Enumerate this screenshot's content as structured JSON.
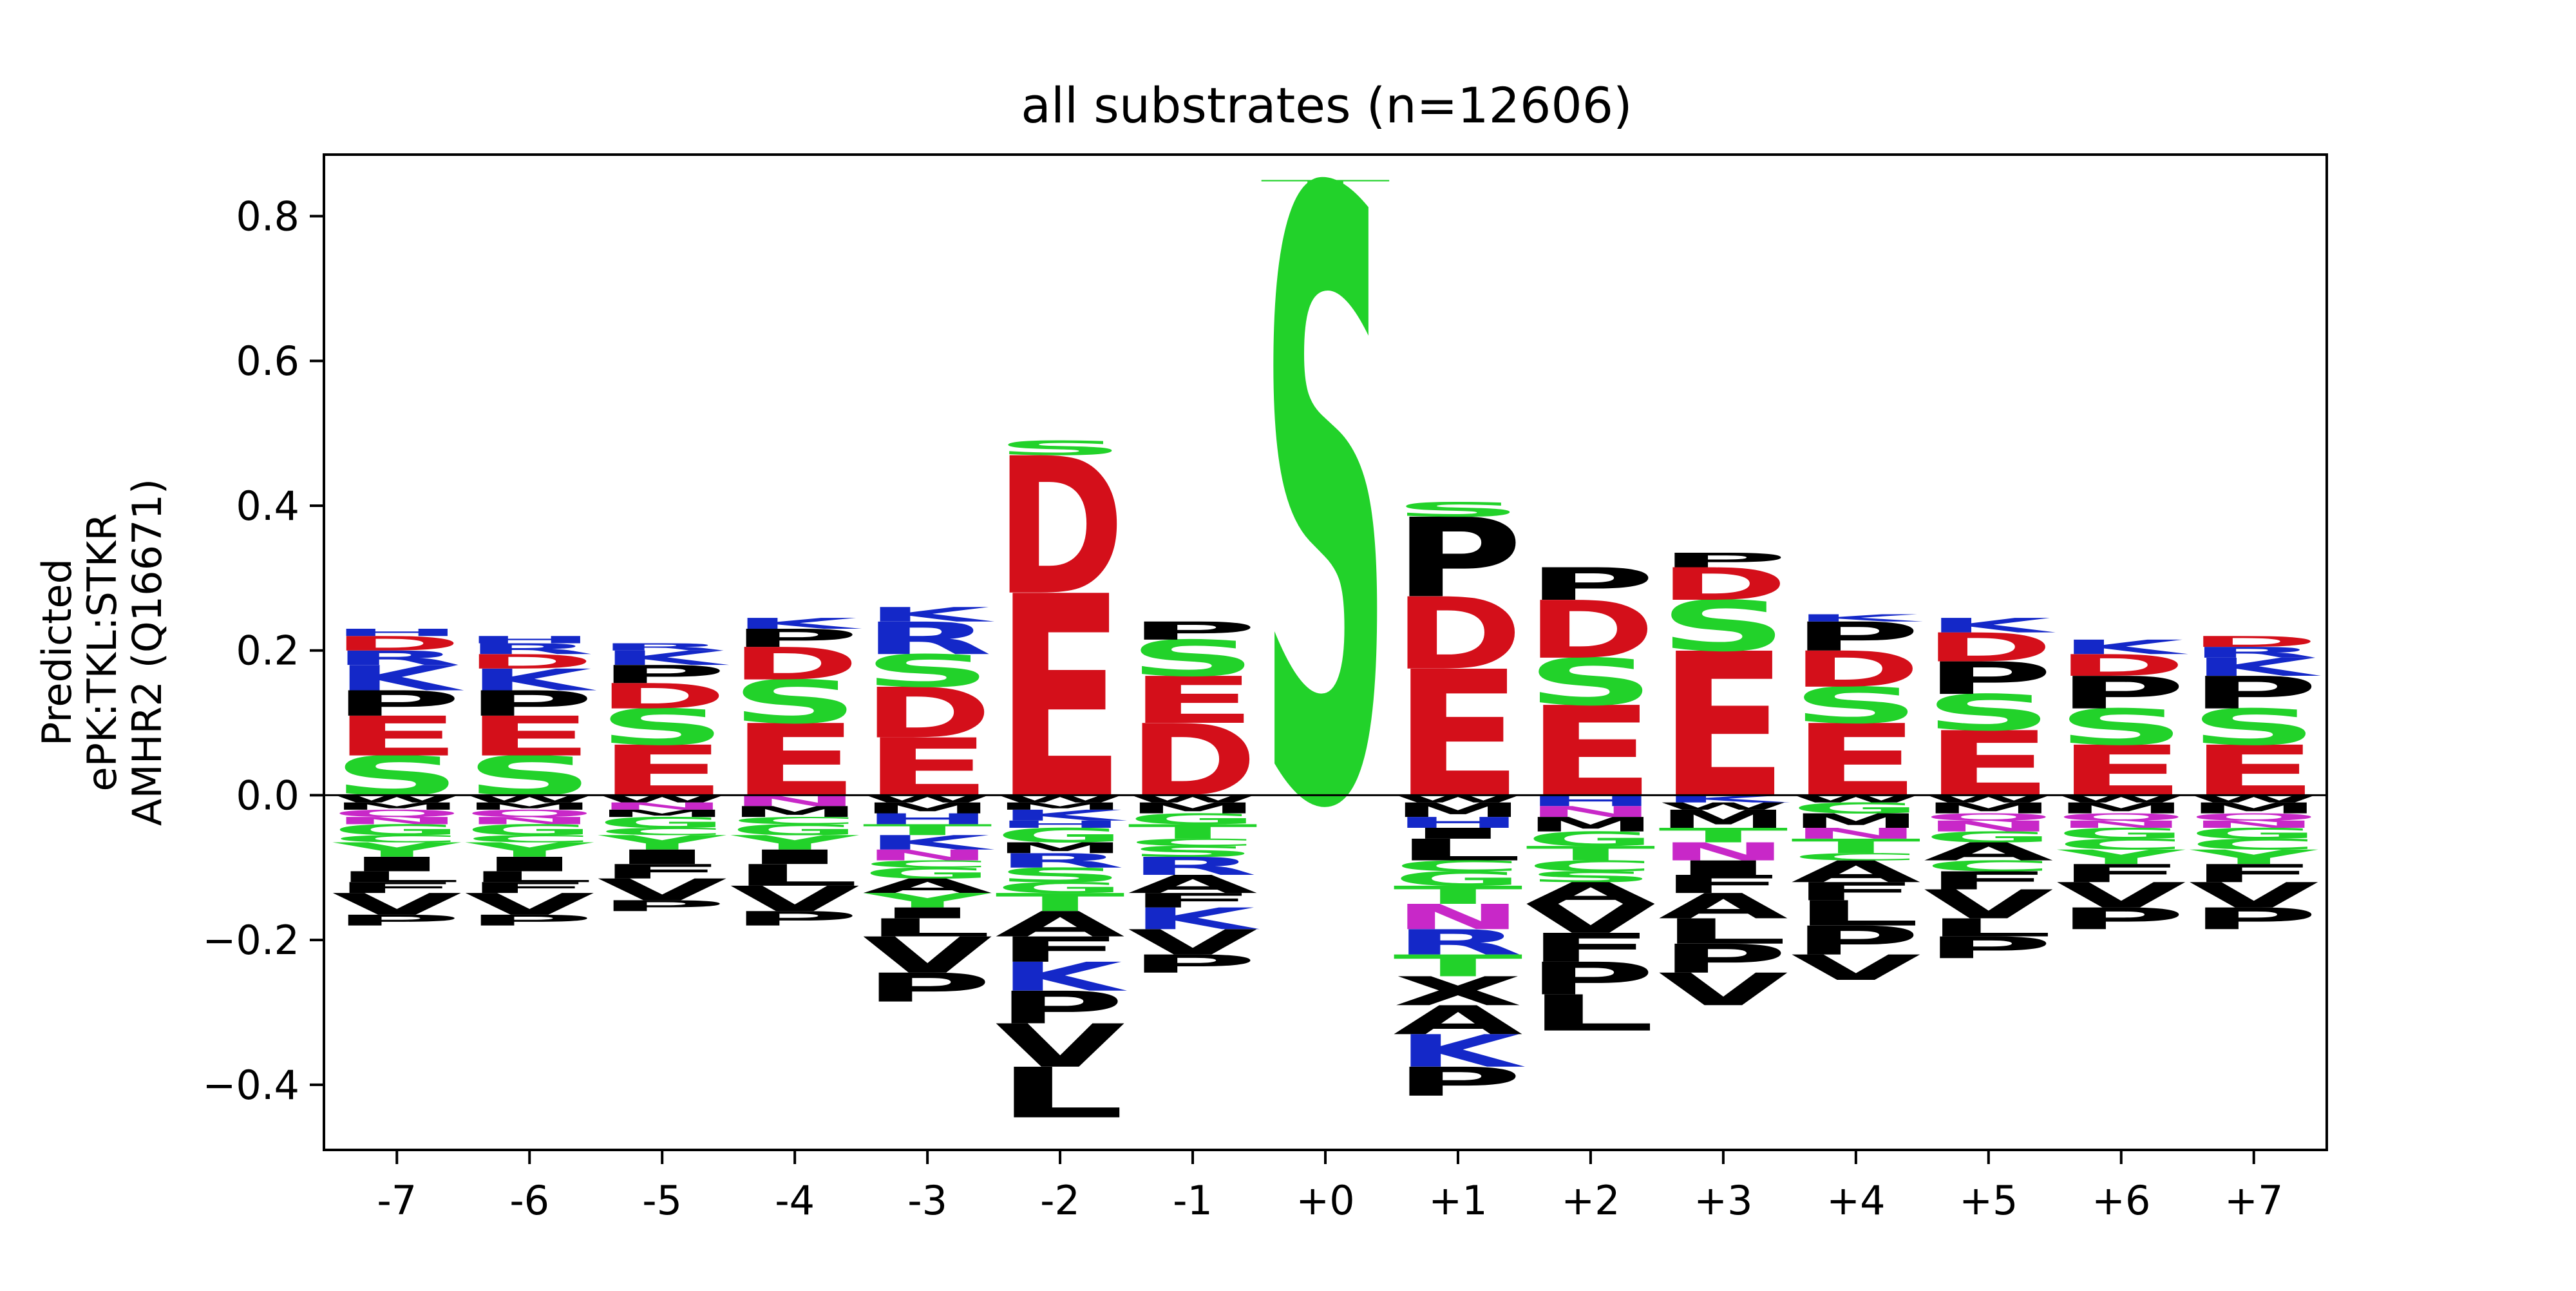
{
  "chart_data": {
    "type": "sequence-logo",
    "title": "all substrates (n=12606)",
    "ylabel_lines": [
      "Predicted",
      "ePK:TKL:STKR",
      "AMHR2 (Q16671)"
    ],
    "ylim": [
      -0.49,
      0.885
    ],
    "yticks": [
      -0.4,
      -0.2,
      0.0,
      0.2,
      0.4,
      0.6,
      0.8
    ],
    "ytick_labels": [
      "−0.4",
      "−0.2",
      "0.0",
      "0.2",
      "0.4",
      "0.6",
      "0.8"
    ],
    "positions": [
      "-7",
      "-6",
      "-5",
      "-4",
      "-3",
      "-2",
      "-1",
      "+0",
      "+1",
      "+2",
      "+3",
      "+4",
      "+5",
      "+6",
      "+7"
    ],
    "colors": {
      "acidic": "#d40f1a",
      "basic": "#1428c8",
      "polar": "#22d22a",
      "amide": "#c828c8",
      "hydrophobic": "#000000",
      "axis": "#000000",
      "background": "#ffffff"
    },
    "residue_color_groups": {
      "acidic": [
        "D",
        "E"
      ],
      "basic": [
        "K",
        "R",
        "H"
      ],
      "polar": [
        "S",
        "T",
        "G",
        "Y",
        "C"
      ],
      "amide": [
        "N",
        "Q"
      ],
      "hydrophobic": [
        "A",
        "V",
        "L",
        "I",
        "P",
        "F",
        "M",
        "W"
      ]
    },
    "columns": [
      {
        "pos": "-7",
        "pos_stack": [
          [
            "S",
            0.055
          ],
          [
            "E",
            0.055
          ],
          [
            "P",
            0.035
          ],
          [
            "K",
            0.035
          ],
          [
            "R",
            0.02
          ],
          [
            "D",
            0.02
          ],
          [
            "H",
            0.01
          ]
        ],
        "neg_stack": [
          [
            "W",
            0.01
          ],
          [
            "M",
            0.01
          ],
          [
            "Q",
            0.01
          ],
          [
            "N",
            0.01
          ],
          [
            "G",
            0.015
          ],
          [
            "C",
            0.01
          ],
          [
            "Y",
            0.02
          ],
          [
            "I",
            0.02
          ],
          [
            "L",
            0.015
          ],
          [
            "F",
            0.015
          ],
          [
            "V",
            0.03
          ],
          [
            "P",
            0.015
          ]
        ]
      },
      {
        "pos": "-6",
        "pos_stack": [
          [
            "S",
            0.055
          ],
          [
            "E",
            0.055
          ],
          [
            "P",
            0.035
          ],
          [
            "K",
            0.03
          ],
          [
            "D",
            0.02
          ],
          [
            "R",
            0.015
          ],
          [
            "H",
            0.01
          ]
        ],
        "neg_stack": [
          [
            "W",
            0.01
          ],
          [
            "M",
            0.01
          ],
          [
            "Q",
            0.01
          ],
          [
            "N",
            0.01
          ],
          [
            "G",
            0.015
          ],
          [
            "C",
            0.01
          ],
          [
            "Y",
            0.02
          ],
          [
            "I",
            0.02
          ],
          [
            "L",
            0.015
          ],
          [
            "F",
            0.015
          ],
          [
            "V",
            0.03
          ],
          [
            "P",
            0.015
          ]
        ]
      },
      {
        "pos": "-5",
        "pos_stack": [
          [
            "E",
            0.07
          ],
          [
            "S",
            0.05
          ],
          [
            "D",
            0.035
          ],
          [
            "P",
            0.025
          ],
          [
            "K",
            0.02
          ],
          [
            "R",
            0.01
          ]
        ],
        "neg_stack": [
          [
            "W",
            0.01
          ],
          [
            "N",
            0.01
          ],
          [
            "M",
            0.01
          ],
          [
            "G",
            0.015
          ],
          [
            "C",
            0.01
          ],
          [
            "Y",
            0.02
          ],
          [
            "I",
            0.02
          ],
          [
            "F",
            0.02
          ],
          [
            "V",
            0.03
          ],
          [
            "P",
            0.015
          ]
        ]
      },
      {
        "pos": "-4",
        "pos_stack": [
          [
            "E",
            0.1
          ],
          [
            "S",
            0.06
          ],
          [
            "D",
            0.045
          ],
          [
            "P",
            0.025
          ],
          [
            "K",
            0.015
          ]
        ],
        "neg_stack": [
          [
            "N",
            0.015
          ],
          [
            "M",
            0.015
          ],
          [
            "C",
            0.01
          ],
          [
            "G",
            0.015
          ],
          [
            "Y",
            0.02
          ],
          [
            "I",
            0.02
          ],
          [
            "L",
            0.03
          ],
          [
            "V",
            0.035
          ],
          [
            "P",
            0.02
          ]
        ]
      },
      {
        "pos": "-3",
        "pos_stack": [
          [
            "E",
            0.08
          ],
          [
            "D",
            0.07
          ],
          [
            "S",
            0.045
          ],
          [
            "R",
            0.045
          ],
          [
            "K",
            0.02
          ]
        ],
        "neg_stack": [
          [
            "W",
            0.01
          ],
          [
            "M",
            0.015
          ],
          [
            "H",
            0.015
          ],
          [
            "T",
            0.015
          ],
          [
            "K",
            0.02
          ],
          [
            "N",
            0.015
          ],
          [
            "C",
            0.01
          ],
          [
            "G",
            0.015
          ],
          [
            "A",
            0.02
          ],
          [
            "Y",
            0.02
          ],
          [
            "I",
            0.015
          ],
          [
            "L",
            0.025
          ],
          [
            "V",
            0.05
          ],
          [
            "P",
            0.04
          ]
        ]
      },
      {
        "pos": "-2",
        "pos_stack": [
          [
            "E",
            0.28
          ],
          [
            "D",
            0.19
          ],
          [
            "S",
            0.02
          ]
        ],
        "neg_stack": [
          [
            "W",
            0.01
          ],
          [
            "M",
            0.01
          ],
          [
            "K",
            0.015
          ],
          [
            "H",
            0.01
          ],
          [
            "G",
            0.02
          ],
          [
            "M",
            0.015
          ],
          [
            "R",
            0.02
          ],
          [
            "S",
            0.02
          ],
          [
            "G",
            0.015
          ],
          [
            "T",
            0.025
          ],
          [
            "A",
            0.035
          ],
          [
            "F",
            0.035
          ],
          [
            "K",
            0.04
          ],
          [
            "P",
            0.045
          ],
          [
            "V",
            0.06
          ],
          [
            "L",
            0.07
          ]
        ]
      },
      {
        "pos": "-1",
        "pos_stack": [
          [
            "D",
            0.1
          ],
          [
            "E",
            0.065
          ],
          [
            "S",
            0.05
          ],
          [
            "P",
            0.025
          ]
        ],
        "neg_stack": [
          [
            "W",
            0.01
          ],
          [
            "M",
            0.015
          ],
          [
            "G",
            0.015
          ],
          [
            "T",
            0.02
          ],
          [
            "C",
            0.01
          ],
          [
            "S",
            0.015
          ],
          [
            "R",
            0.025
          ],
          [
            "A",
            0.025
          ],
          [
            "F",
            0.02
          ],
          [
            "K",
            0.03
          ],
          [
            "V",
            0.035
          ],
          [
            "P",
            0.025
          ]
        ]
      },
      {
        "pos": "+0",
        "pos_stack": [
          [
            "S",
            0.84
          ],
          [
            "T",
            0.01
          ]
        ],
        "neg_stack": []
      },
      {
        "pos": "+1",
        "pos_stack": [
          [
            "E",
            0.175
          ],
          [
            "D",
            0.1
          ],
          [
            "P",
            0.11
          ],
          [
            "S",
            0.02
          ]
        ],
        "neg_stack": [
          [
            "W",
            0.01
          ],
          [
            "M",
            0.02
          ],
          [
            "H",
            0.015
          ],
          [
            "I",
            0.015
          ],
          [
            "L",
            0.03
          ],
          [
            "C",
            0.015
          ],
          [
            "G",
            0.02
          ],
          [
            "T",
            0.025
          ],
          [
            "N",
            0.035
          ],
          [
            "R",
            0.035
          ],
          [
            "T",
            0.03
          ],
          [
            "X",
            0.04
          ],
          [
            "A",
            0.04
          ],
          [
            "K",
            0.045
          ],
          [
            "P",
            0.04
          ]
        ]
      },
      {
        "pos": "+2",
        "pos_stack": [
          [
            "E",
            0.125
          ],
          [
            "S",
            0.065
          ],
          [
            "D",
            0.08
          ],
          [
            "P",
            0.045
          ]
        ],
        "neg_stack": [
          [
            "H",
            0.015
          ],
          [
            "N",
            0.015
          ],
          [
            "M",
            0.02
          ],
          [
            "G",
            0.02
          ],
          [
            "T",
            0.02
          ],
          [
            "C",
            0.015
          ],
          [
            "S",
            0.015
          ],
          [
            "A",
            0.03
          ],
          [
            "V",
            0.04
          ],
          [
            "F",
            0.04
          ],
          [
            "P",
            0.045
          ],
          [
            "L",
            0.05
          ]
        ]
      },
      {
        "pos": "+3",
        "pos_stack": [
          [
            "E",
            0.2
          ],
          [
            "S",
            0.07
          ],
          [
            "D",
            0.045
          ],
          [
            "P",
            0.02
          ]
        ],
        "neg_stack": [
          [
            "K",
            0.01
          ],
          [
            "W",
            0.01
          ],
          [
            "M",
            0.025
          ],
          [
            "T",
            0.02
          ],
          [
            "N",
            0.025
          ],
          [
            "I",
            0.02
          ],
          [
            "F",
            0.025
          ],
          [
            "A",
            0.035
          ],
          [
            "L",
            0.035
          ],
          [
            "P",
            0.04
          ],
          [
            "V",
            0.045
          ]
        ]
      },
      {
        "pos": "+4",
        "pos_stack": [
          [
            "E",
            0.1
          ],
          [
            "S",
            0.05
          ],
          [
            "D",
            0.05
          ],
          [
            "P",
            0.04
          ],
          [
            "K",
            0.01
          ]
        ],
        "neg_stack": [
          [
            "W",
            0.01
          ],
          [
            "G",
            0.015
          ],
          [
            "M",
            0.02
          ],
          [
            "N",
            0.015
          ],
          [
            "T",
            0.02
          ],
          [
            "C",
            0.01
          ],
          [
            "A",
            0.03
          ],
          [
            "F",
            0.025
          ],
          [
            "L",
            0.035
          ],
          [
            "P",
            0.04
          ],
          [
            "V",
            0.035
          ]
        ]
      },
      {
        "pos": "+5",
        "pos_stack": [
          [
            "E",
            0.09
          ],
          [
            "S",
            0.05
          ],
          [
            "P",
            0.045
          ],
          [
            "D",
            0.04
          ],
          [
            "K",
            0.02
          ]
        ],
        "neg_stack": [
          [
            "W",
            0.01
          ],
          [
            "M",
            0.015
          ],
          [
            "Q",
            0.01
          ],
          [
            "N",
            0.015
          ],
          [
            "G",
            0.015
          ],
          [
            "A",
            0.025
          ],
          [
            "C",
            0.015
          ],
          [
            "F",
            0.025
          ],
          [
            "V",
            0.04
          ],
          [
            "L",
            0.025
          ],
          [
            "P",
            0.03
          ]
        ]
      },
      {
        "pos": "+6",
        "pos_stack": [
          [
            "E",
            0.07
          ],
          [
            "S",
            0.05
          ],
          [
            "P",
            0.045
          ],
          [
            "D",
            0.03
          ],
          [
            "K",
            0.02
          ]
        ],
        "neg_stack": [
          [
            "W",
            0.01
          ],
          [
            "M",
            0.015
          ],
          [
            "Q",
            0.01
          ],
          [
            "N",
            0.01
          ],
          [
            "G",
            0.015
          ],
          [
            "C",
            0.015
          ],
          [
            "Y",
            0.02
          ],
          [
            "F",
            0.025
          ],
          [
            "V",
            0.035
          ],
          [
            "P",
            0.03
          ]
        ]
      },
      {
        "pos": "+7",
        "pos_stack": [
          [
            "E",
            0.07
          ],
          [
            "S",
            0.05
          ],
          [
            "P",
            0.045
          ],
          [
            "K",
            0.025
          ],
          [
            "R",
            0.015
          ],
          [
            "D",
            0.015
          ]
        ],
        "neg_stack": [
          [
            "W",
            0.01
          ],
          [
            "M",
            0.015
          ],
          [
            "Q",
            0.01
          ],
          [
            "N",
            0.01
          ],
          [
            "G",
            0.015
          ],
          [
            "C",
            0.015
          ],
          [
            "Y",
            0.02
          ],
          [
            "F",
            0.025
          ],
          [
            "V",
            0.035
          ],
          [
            "P",
            0.03
          ]
        ]
      }
    ]
  }
}
